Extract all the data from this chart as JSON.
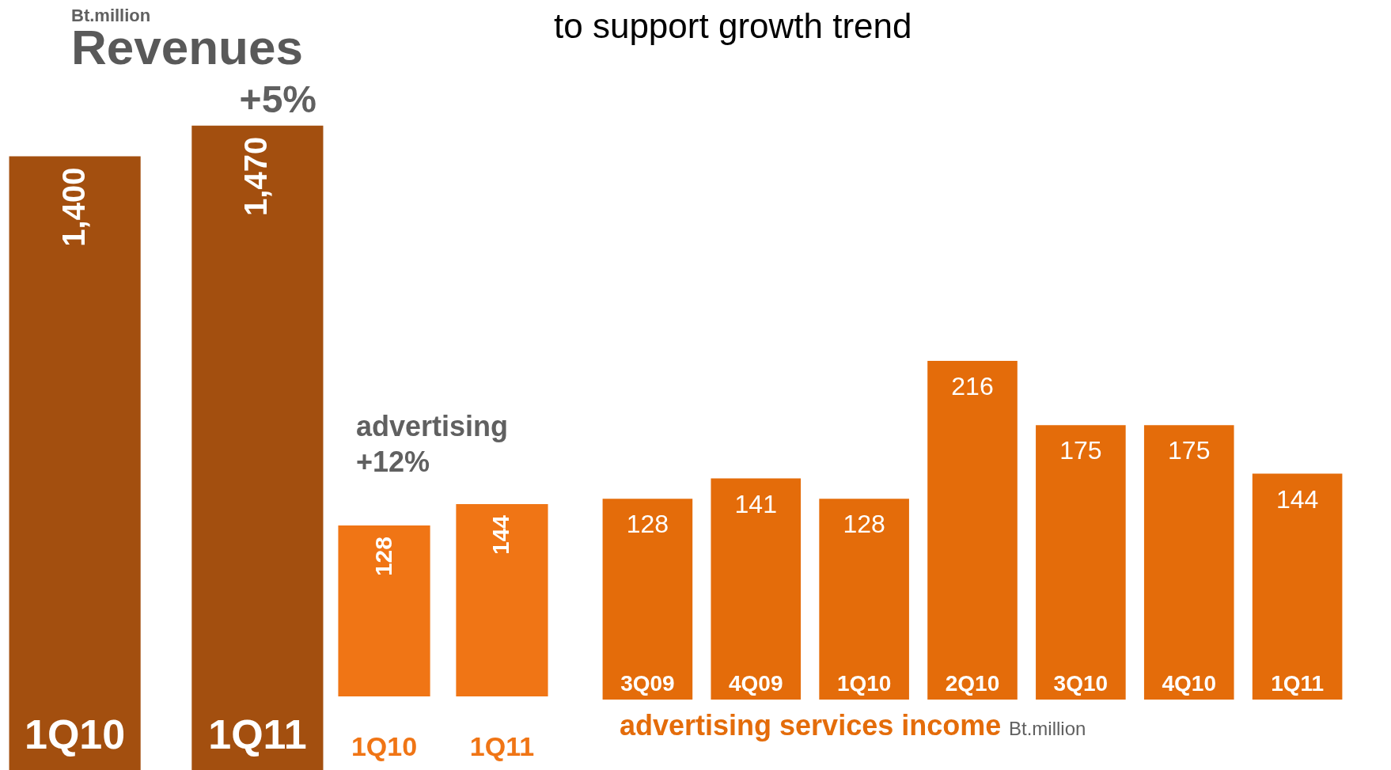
{
  "chart_data": [
    {
      "type": "bar",
      "title": "Revenues",
      "categories": [
        "1Q10",
        "1Q11"
      ],
      "values": [
        1400,
        1470
      ],
      "value_labels": [
        "1,400",
        "1,470"
      ],
      "color": "#a34f0f",
      "annotations": [
        "Bt.million",
        "+5%"
      ]
    },
    {
      "type": "bar",
      "title": "advertising",
      "categories": [
        "1Q10",
        "1Q11"
      ],
      "values": [
        128,
        144
      ],
      "color": "#f07515",
      "data_labels": true,
      "annotations": [
        "+12%"
      ]
    },
    {
      "type": "bar",
      "title": "to support growth trend",
      "xlabel": "advertising services income",
      "categories": [
        "3Q09",
        "4Q09",
        "1Q10",
        "2Q10",
        "3Q10",
        "4Q10",
        "1Q11"
      ],
      "values": [
        128,
        141,
        128,
        216,
        175,
        175,
        144
      ],
      "color": "#e46c0a",
      "data_labels": true,
      "annotations": [
        "Bt.million"
      ]
    }
  ]
}
